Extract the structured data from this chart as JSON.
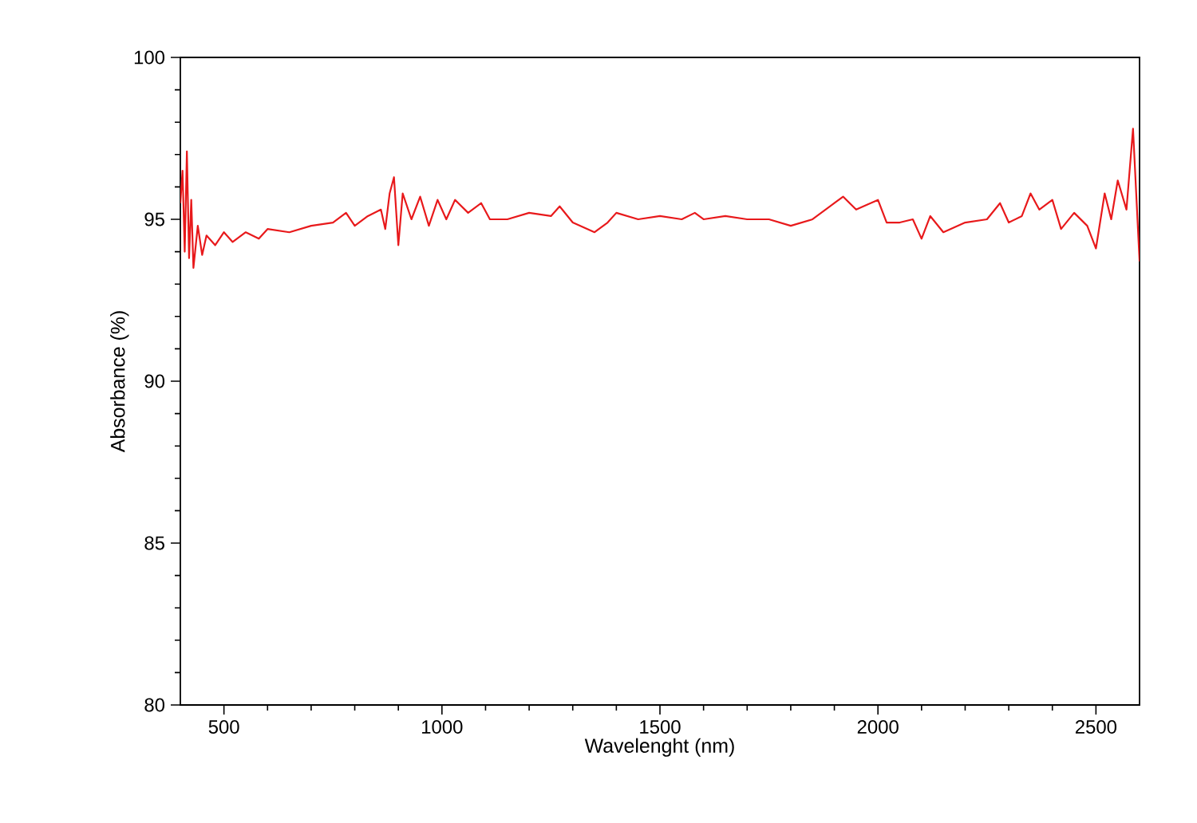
{
  "chart_data": {
    "type": "line",
    "xlabel": "Wavelenght (nm)",
    "ylabel": "Absorbance (%)",
    "xlim": [
      400,
      2600
    ],
    "ylim": [
      80,
      100
    ],
    "xticks": [
      500,
      1000,
      1500,
      2000,
      2500
    ],
    "yticks": [
      80,
      85,
      90,
      95,
      100
    ],
    "grid": false,
    "marker": "none",
    "line_style": "solid",
    "series": [
      {
        "color": "#e8191b",
        "x": [
          400,
          405,
          410,
          415,
          420,
          425,
          430,
          440,
          450,
          460,
          480,
          500,
          520,
          550,
          580,
          600,
          650,
          700,
          750,
          780,
          800,
          830,
          860,
          870,
          880,
          890,
          900,
          910,
          930,
          950,
          970,
          990,
          1010,
          1030,
          1060,
          1090,
          1110,
          1150,
          1200,
          1250,
          1270,
          1300,
          1350,
          1380,
          1400,
          1450,
          1500,
          1550,
          1580,
          1600,
          1650,
          1700,
          1750,
          1800,
          1850,
          1900,
          1920,
          1950,
          2000,
          2020,
          2050,
          2080,
          2100,
          2120,
          2150,
          2200,
          2250,
          2280,
          2300,
          2330,
          2350,
          2370,
          2400,
          2420,
          2450,
          2480,
          2500,
          2520,
          2535,
          2550,
          2570,
          2585,
          2600
        ],
        "values": [
          95.5,
          96.5,
          94.0,
          97.1,
          93.8,
          95.6,
          93.5,
          94.8,
          93.9,
          94.5,
          94.2,
          94.6,
          94.3,
          94.6,
          94.4,
          94.7,
          94.6,
          94.8,
          94.9,
          95.2,
          94.8,
          95.1,
          95.3,
          94.7,
          95.8,
          96.3,
          94.2,
          95.8,
          95.0,
          95.7,
          94.8,
          95.6,
          95.0,
          95.6,
          95.2,
          95.5,
          95.0,
          95.0,
          95.2,
          95.1,
          95.4,
          94.9,
          94.6,
          94.9,
          95.2,
          95.0,
          95.1,
          95.0,
          95.2,
          95.0,
          95.1,
          95.0,
          95.0,
          94.8,
          95.0,
          95.5,
          95.7,
          95.3,
          95.6,
          94.9,
          94.9,
          95.0,
          94.4,
          95.1,
          94.6,
          94.9,
          95.0,
          95.5,
          94.9,
          95.1,
          95.8,
          95.3,
          95.6,
          94.7,
          95.2,
          94.8,
          94.1,
          95.8,
          95.0,
          96.2,
          95.3,
          97.8,
          93.7
        ]
      }
    ]
  }
}
